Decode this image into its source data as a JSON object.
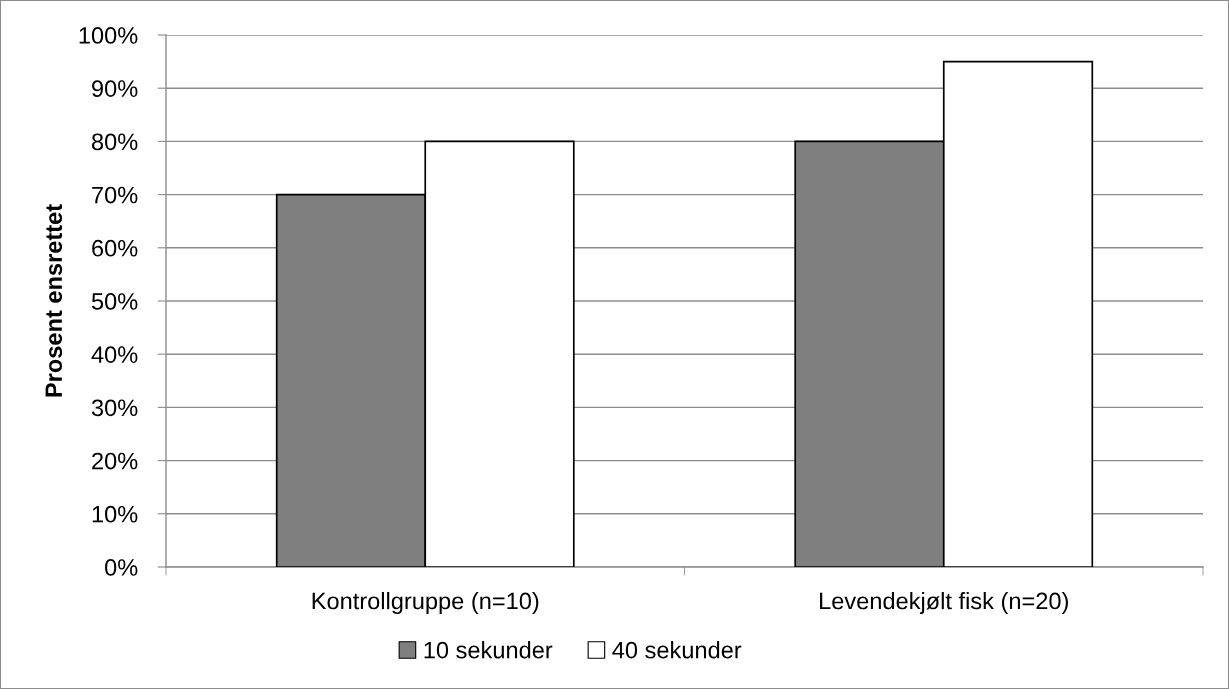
{
  "chart_data": {
    "type": "bar",
    "ylabel": "Prosent ensrettet",
    "categories": [
      "Kontrollgruppe (n=10)",
      "Levendekjølt fisk (n=20)"
    ],
    "series": [
      {
        "name": "10 sekunder",
        "color": "#7f7f7f",
        "values": [
          70,
          80
        ]
      },
      {
        "name": "40 sekunder",
        "color": "#ffffff",
        "values": [
          80,
          95
        ]
      }
    ],
    "ylim": [
      0,
      100
    ],
    "yticks": [
      {
        "value": 0,
        "label": "0%"
      },
      {
        "value": 10,
        "label": "10%"
      },
      {
        "value": 20,
        "label": "20%"
      },
      {
        "value": 30,
        "label": "30%"
      },
      {
        "value": 40,
        "label": "40%"
      },
      {
        "value": 50,
        "label": "50%"
      },
      {
        "value": 60,
        "label": "60%"
      },
      {
        "value": 70,
        "label": "70%"
      },
      {
        "value": 80,
        "label": "80%"
      },
      {
        "value": 90,
        "label": "90%"
      },
      {
        "value": 100,
        "label": "100%"
      }
    ],
    "grid": "y",
    "legend": "bottom"
  }
}
